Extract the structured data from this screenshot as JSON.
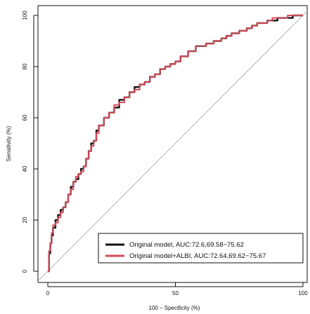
{
  "chart_data": {
    "type": "line",
    "title": "",
    "xlabel": "100 – Specificity (%)",
    "ylabel": "Sensitivity (%)",
    "xlim": [
      0,
      100
    ],
    "ylim": [
      0,
      100
    ],
    "x_ticks": [
      "0",
      "50",
      "100"
    ],
    "y_ticks": [
      "0",
      "20",
      "40",
      "60",
      "80",
      "100"
    ],
    "grid": false,
    "legend_position": "bottom-right",
    "reference_line": {
      "x": [
        0,
        100
      ],
      "y": [
        0,
        100
      ],
      "color": "#b4b4b4"
    },
    "series": [
      {
        "name": "Original model, AUC:72.6,69.58−75.62",
        "color": "#111111",
        "x": [
          0,
          0.5,
          1,
          1.5,
          2,
          3,
          4,
          5,
          6,
          7,
          8,
          9,
          10,
          11,
          12,
          13,
          14,
          15,
          16,
          17,
          18,
          19,
          20,
          22,
          24,
          26,
          28,
          30,
          32,
          34,
          36,
          38,
          40,
          42,
          44,
          46,
          48,
          50,
          52,
          55,
          58,
          60,
          62,
          65,
          68,
          70,
          72,
          75,
          78,
          80,
          82,
          84,
          86,
          88,
          90,
          92,
          94,
          96,
          98,
          100
        ],
        "y": [
          0,
          7,
          11,
          14,
          17,
          20,
          22,
          24,
          25,
          27,
          30,
          33,
          35,
          36,
          38,
          40,
          41,
          44,
          47,
          50,
          51,
          55,
          57,
          60,
          62,
          64,
          67,
          68,
          70,
          72,
          73,
          74,
          76,
          77,
          79,
          80,
          81,
          82,
          84,
          86,
          88,
          88,
          89,
          90,
          91,
          92,
          93,
          94,
          95,
          96,
          97,
          97,
          98,
          98,
          99,
          99,
          99,
          100,
          100,
          100
        ]
      },
      {
        "name": "Original model+ALBI, AUC:72.64,69.62−75.67",
        "color": "#d24a57",
        "x": [
          0,
          0.5,
          1,
          1.5,
          2,
          3,
          4,
          5,
          6,
          7,
          8,
          9,
          10,
          11,
          12,
          13,
          14,
          15,
          16,
          17,
          18,
          19,
          20,
          22,
          24,
          26,
          28,
          30,
          32,
          34,
          36,
          38,
          40,
          42,
          44,
          46,
          48,
          50,
          52,
          55,
          58,
          60,
          62,
          65,
          68,
          70,
          72,
          75,
          78,
          80,
          82,
          84,
          86,
          88,
          90,
          92,
          94,
          96,
          98,
          100
        ],
        "y": [
          0,
          8,
          11,
          15,
          18,
          19,
          21,
          23,
          25,
          27,
          30,
          32,
          35,
          37,
          38,
          39,
          41,
          44,
          47,
          49,
          51,
          54,
          57,
          60,
          62,
          65,
          66,
          68,
          70,
          71,
          73,
          74,
          76,
          77,
          79,
          80,
          81,
          82,
          84,
          86,
          88,
          88,
          89,
          90,
          91,
          92,
          93,
          94,
          95,
          96,
          97,
          97,
          98,
          99,
          99,
          99,
          100,
          100,
          100,
          100
        ]
      }
    ]
  }
}
